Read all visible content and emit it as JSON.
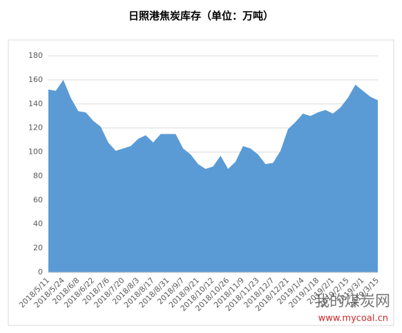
{
  "chart_data": {
    "type": "area",
    "title": "日照港焦炭库存（单位：万吨）",
    "categories": [
      "2018/5/11",
      null,
      "2018/5/24",
      null,
      "2018/6/8",
      null,
      "2018/6/22",
      null,
      "2018/7/6",
      null,
      "2018/7/20",
      null,
      "2018/8/3",
      null,
      "2018/8/17",
      null,
      "2018/8/31",
      null,
      "2018/9/7",
      null,
      "2018/9/21",
      null,
      "2018/10/12",
      null,
      "2018/10/26",
      null,
      "2018/11/9",
      null,
      "2018/11/23",
      null,
      "2018/12/7",
      null,
      "2018/12/21",
      null,
      "2019/1/4",
      null,
      "2019/1/18",
      null,
      "2019/2/1",
      null,
      "2019/2/15",
      null,
      "2019/3/1",
      null,
      "2019/3/15"
    ],
    "values": [
      152,
      151,
      160,
      145,
      134,
      133,
      126,
      121,
      108,
      101,
      103,
      105,
      111,
      114,
      108,
      115,
      115,
      115,
      103,
      98,
      90,
      86,
      88,
      97,
      86,
      92,
      105,
      103,
      98,
      90,
      91,
      101,
      119,
      125,
      132,
      130,
      133,
      135,
      132,
      137,
      145,
      156,
      151,
      146,
      143
    ],
    "color": "#5b9bd5",
    "ylim": [
      0,
      180
    ],
    "yticks": [
      0,
      20,
      40,
      60,
      80,
      100,
      120,
      140,
      160,
      180
    ],
    "grid": true,
    "watermark": {
      "name": "我的煤炭网",
      "url": "www.mycoal.cn"
    }
  }
}
